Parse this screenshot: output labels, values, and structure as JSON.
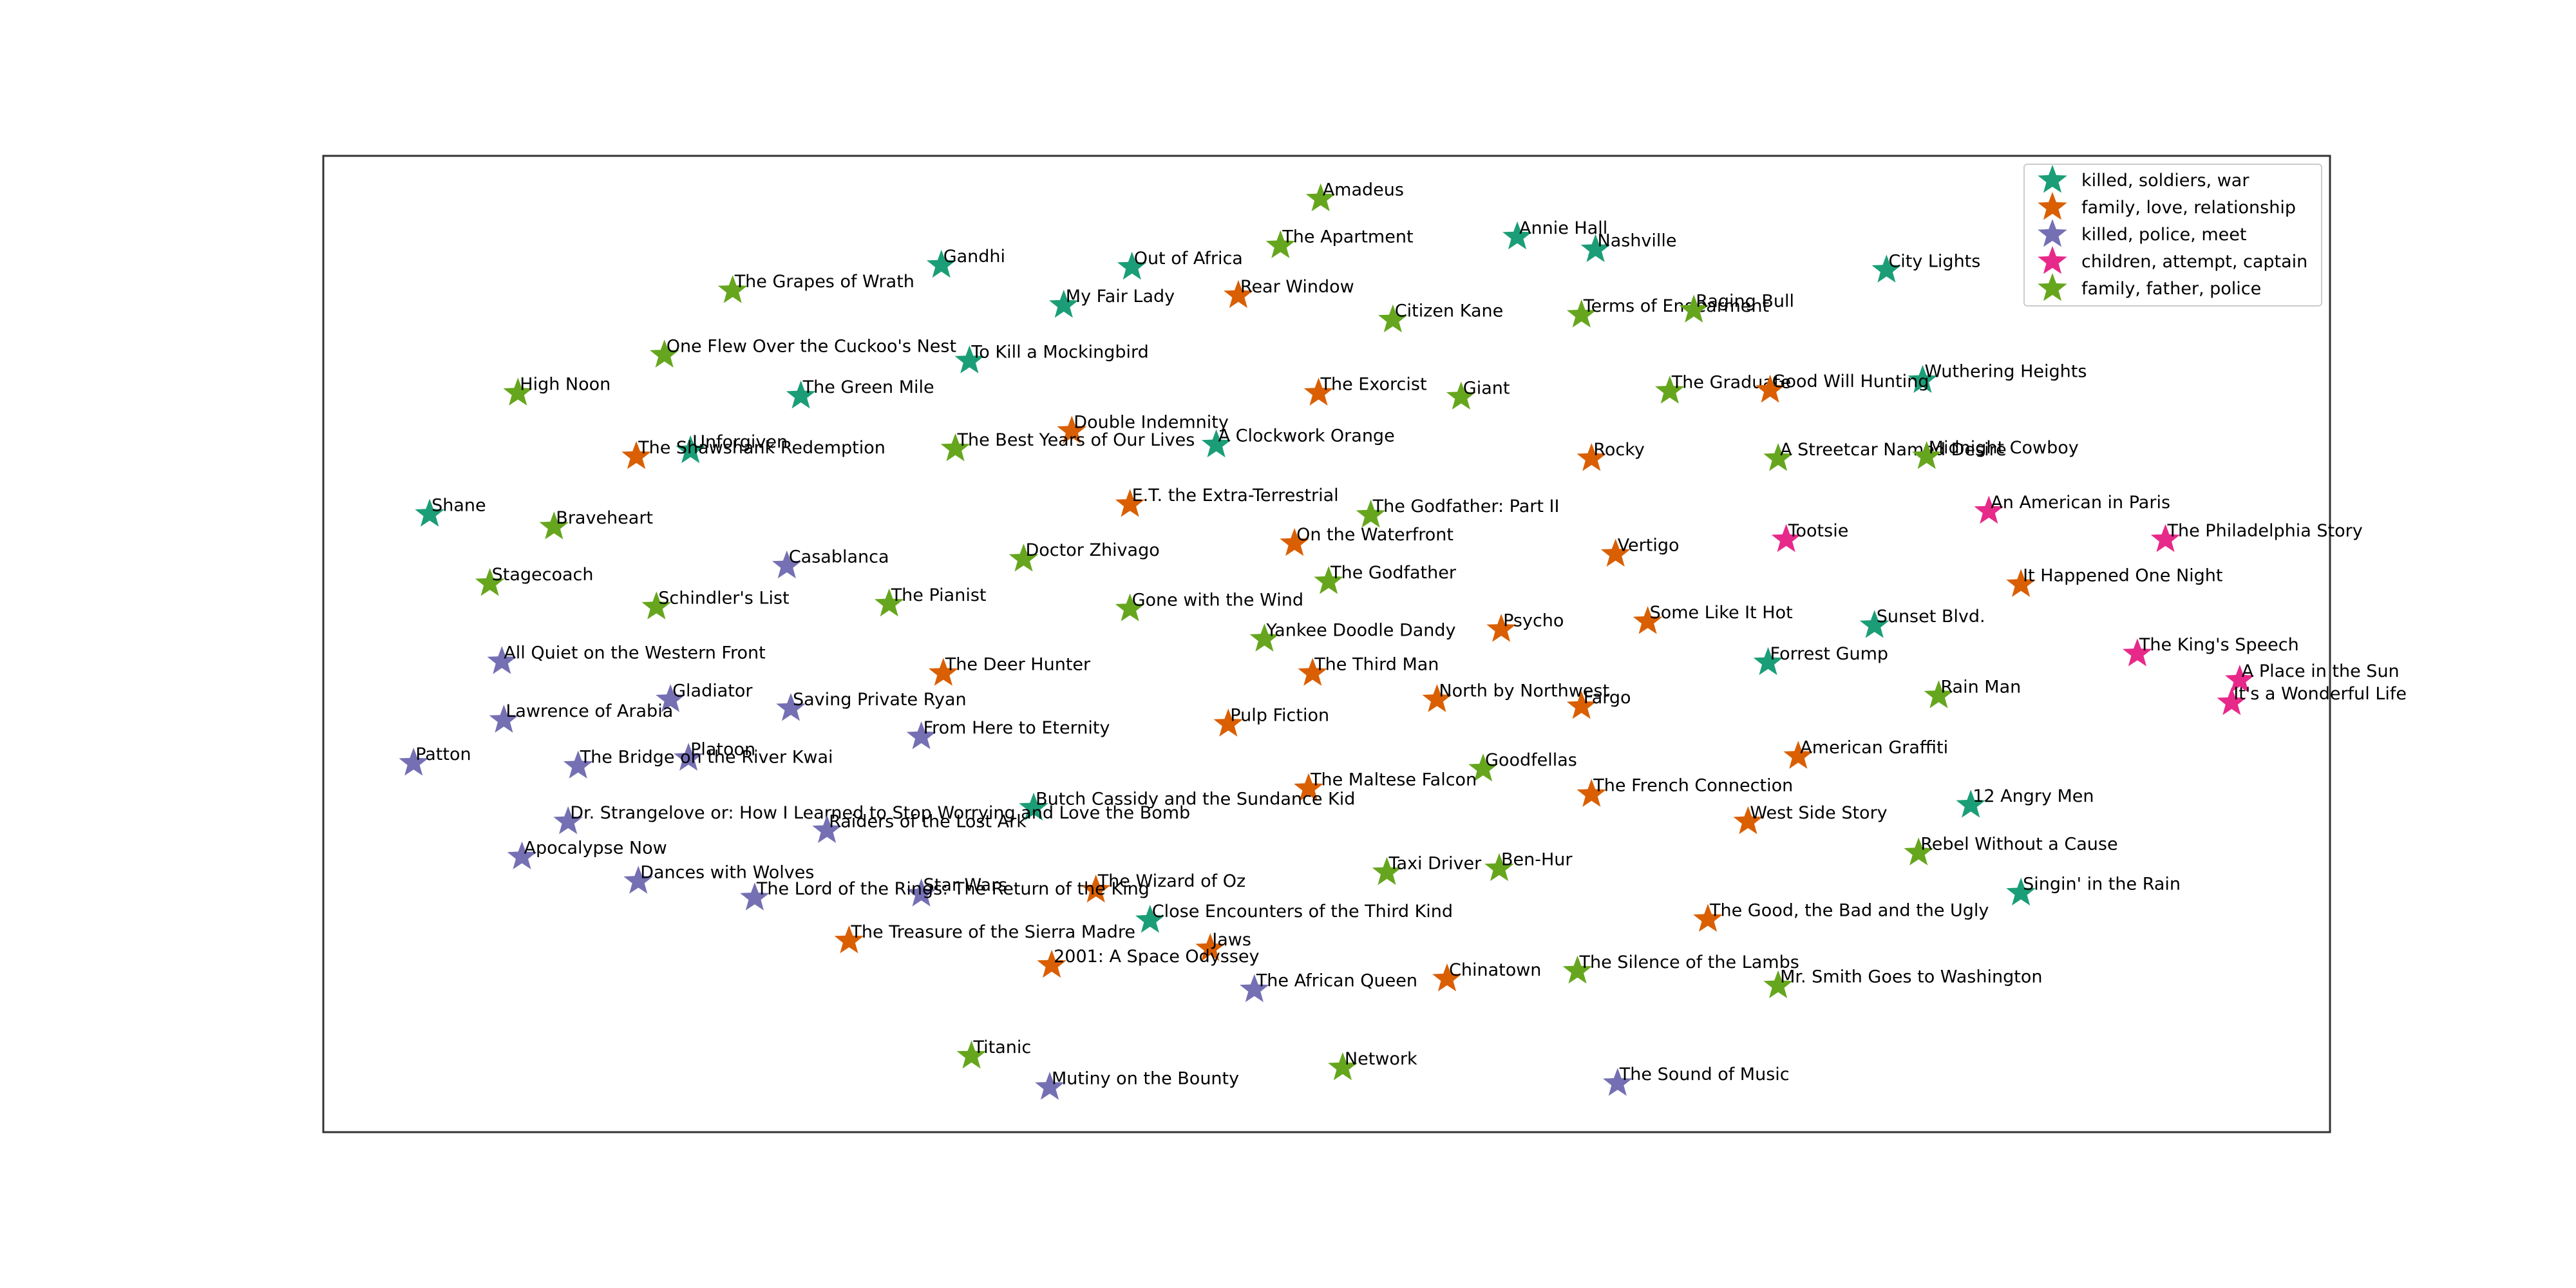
{
  "chart_data": {
    "type": "scatter",
    "title": "",
    "xlabel": "",
    "ylabel": "",
    "grid": false,
    "axis_ticks": false,
    "legend_placement": "top-right",
    "xlim": [
      0,
      1000
    ],
    "ylim": [
      0,
      1000
    ],
    "series": [
      {
        "name": "killed, soldiers, war",
        "color": "#1b9e77",
        "marker": "star"
      },
      {
        "name": "family, love, relationship",
        "color": "#d95f02",
        "marker": "star"
      },
      {
        "name": "killed, police, meet",
        "color": "#7570b3",
        "marker": "star"
      },
      {
        "name": "children, attempt, captain",
        "color": "#e7298a",
        "marker": "star"
      },
      {
        "name": "family, father, police",
        "color": "#66a61e",
        "marker": "star"
      }
    ],
    "points": [
      {
        "label": "Amadeus",
        "x": 497,
        "y": 956,
        "s": 4
      },
      {
        "label": "Annie Hall",
        "x": 595,
        "y": 917,
        "s": 0
      },
      {
        "label": "Nashville",
        "x": 634,
        "y": 904,
        "s": 0
      },
      {
        "label": "Gandhi",
        "x": 308,
        "y": 888,
        "s": 0
      },
      {
        "label": "Out of Africa",
        "x": 403,
        "y": 886,
        "s": 0
      },
      {
        "label": "The Apartment",
        "x": 477,
        "y": 908,
        "s": 4
      },
      {
        "label": "City Lights",
        "x": 779,
        "y": 883,
        "s": 0
      },
      {
        "label": "The Grapes of Wrath",
        "x": 204,
        "y": 862,
        "s": 4
      },
      {
        "label": "My Fair Lady",
        "x": 369,
        "y": 847,
        "s": 0
      },
      {
        "label": "Rear Window",
        "x": 456,
        "y": 857,
        "s": 1
      },
      {
        "label": "Citizen Kane",
        "x": 533,
        "y": 832,
        "s": 4
      },
      {
        "label": "Terms of Endearment",
        "x": 627,
        "y": 837,
        "s": 4
      },
      {
        "label": "Raging Bull",
        "x": 683,
        "y": 842,
        "s": 4
      },
      {
        "label": "One Flew Over the Cuckoo's Nest",
        "x": 170,
        "y": 796,
        "s": 4
      },
      {
        "label": "To Kill a Mockingbird",
        "x": 322,
        "y": 790,
        "s": 0
      },
      {
        "label": "Wuthering Heights",
        "x": 797,
        "y": 770,
        "s": 0
      },
      {
        "label": "High Noon",
        "x": 97,
        "y": 757,
        "s": 4
      },
      {
        "label": "The Green Mile",
        "x": 238,
        "y": 754,
        "s": 0
      },
      {
        "label": "The Exorcist",
        "x": 496,
        "y": 757,
        "s": 1
      },
      {
        "label": "Giant",
        "x": 567,
        "y": 753,
        "s": 4
      },
      {
        "label": "The Graduate",
        "x": 671,
        "y": 759,
        "s": 4
      },
      {
        "label": "Good Will Hunting",
        "x": 721,
        "y": 760,
        "s": 1
      },
      {
        "label": "Double Indemnity",
        "x": 373,
        "y": 718,
        "s": 1
      },
      {
        "label": "Unforgiven",
        "x": 183,
        "y": 698,
        "s": 0
      },
      {
        "label": "The Shawshank Redemption",
        "x": 156,
        "y": 692,
        "s": 1
      },
      {
        "label": "The Best Years of Our Lives",
        "x": 315,
        "y": 700,
        "s": 4
      },
      {
        "label": "A Clockwork Orange",
        "x": 445,
        "y": 704,
        "s": 0
      },
      {
        "label": "Rocky",
        "x": 632,
        "y": 690,
        "s": 1
      },
      {
        "label": "A Streetcar Named Desire",
        "x": 725,
        "y": 690,
        "s": 4
      },
      {
        "label": "Midnight Cowboy",
        "x": 799,
        "y": 692,
        "s": 4
      },
      {
        "label": "E.T. the Extra-Terrestrial",
        "x": 402,
        "y": 643,
        "s": 1
      },
      {
        "label": "The Godfather: Part II",
        "x": 522,
        "y": 632,
        "s": 4
      },
      {
        "label": "An American in Paris",
        "x": 830,
        "y": 636,
        "s": 3
      },
      {
        "label": "Shane",
        "x": 53,
        "y": 633,
        "s": 0
      },
      {
        "label": "Braveheart",
        "x": 115,
        "y": 620,
        "s": 4
      },
      {
        "label": "Tootsie",
        "x": 729,
        "y": 607,
        "s": 3
      },
      {
        "label": "The Philadelphia Story",
        "x": 918,
        "y": 607,
        "s": 3
      },
      {
        "label": "On the Waterfront",
        "x": 484,
        "y": 603,
        "s": 1
      },
      {
        "label": "Vertigo",
        "x": 644,
        "y": 592,
        "s": 1
      },
      {
        "label": "Casablanca",
        "x": 231,
        "y": 580,
        "s": 2
      },
      {
        "label": "Doctor Zhivago",
        "x": 349,
        "y": 587,
        "s": 4
      },
      {
        "label": "The Godfather",
        "x": 501,
        "y": 564,
        "s": 4
      },
      {
        "label": "Stagecoach",
        "x": 83,
        "y": 562,
        "s": 4
      },
      {
        "label": "It Happened One Night",
        "x": 846,
        "y": 561,
        "s": 1
      },
      {
        "label": "Schindler's List",
        "x": 166,
        "y": 538,
        "s": 4
      },
      {
        "label": "The Pianist",
        "x": 282,
        "y": 541,
        "s": 4
      },
      {
        "label": "Gone with the Wind",
        "x": 402,
        "y": 536,
        "s": 4
      },
      {
        "label": "Psycho",
        "x": 587,
        "y": 515,
        "s": 1
      },
      {
        "label": "Some Like It Hot",
        "x": 660,
        "y": 523,
        "s": 1
      },
      {
        "label": "Sunset Blvd.",
        "x": 773,
        "y": 519,
        "s": 0
      },
      {
        "label": "Yankee Doodle Dandy",
        "x": 469,
        "y": 505,
        "s": 4
      },
      {
        "label": "All Quiet on the Western Front",
        "x": 89,
        "y": 482,
        "s": 2
      },
      {
        "label": "The King's Speech",
        "x": 904,
        "y": 490,
        "s": 3
      },
      {
        "label": "Forrest Gump",
        "x": 720,
        "y": 481,
        "s": 0
      },
      {
        "label": "The Deer Hunter",
        "x": 309,
        "y": 470,
        "s": 1
      },
      {
        "label": "The Third Man",
        "x": 493,
        "y": 470,
        "s": 1
      },
      {
        "label": "A Place in the Sun",
        "x": 955,
        "y": 463,
        "s": 3
      },
      {
        "label": "Gladiator",
        "x": 173,
        "y": 443,
        "s": 2
      },
      {
        "label": "Saving Private Ryan",
        "x": 233,
        "y": 434,
        "s": 2
      },
      {
        "label": "Rain Man",
        "x": 805,
        "y": 447,
        "s": 4
      },
      {
        "label": "It's a Wonderful Life",
        "x": 951,
        "y": 440,
        "s": 3
      },
      {
        "label": "North by Northwest",
        "x": 555,
        "y": 443,
        "s": 1
      },
      {
        "label": "Fargo",
        "x": 627,
        "y": 436,
        "s": 1
      },
      {
        "label": "Lawrence of Arabia",
        "x": 90,
        "y": 422,
        "s": 2
      },
      {
        "label": "Pulp Fiction",
        "x": 451,
        "y": 418,
        "s": 1
      },
      {
        "label": "From Here to Eternity",
        "x": 298,
        "y": 405,
        "s": 2
      },
      {
        "label": "Platoon",
        "x": 182,
        "y": 383,
        "s": 2
      },
      {
        "label": "Patton",
        "x": 45,
        "y": 378,
        "s": 2
      },
      {
        "label": "The Bridge on the River Kwai",
        "x": 127,
        "y": 375,
        "s": 2
      },
      {
        "label": "American Graffiti",
        "x": 735,
        "y": 385,
        "s": 1
      },
      {
        "label": "Goodfellas",
        "x": 578,
        "y": 372,
        "s": 4
      },
      {
        "label": "The Maltese Falcon",
        "x": 491,
        "y": 352,
        "s": 1
      },
      {
        "label": "The French Connection",
        "x": 632,
        "y": 346,
        "s": 1
      },
      {
        "label": "Butch Cassidy and the Sundance Kid",
        "x": 354,
        "y": 332,
        "s": 0
      },
      {
        "label": "12 Angry Men",
        "x": 821,
        "y": 335,
        "s": 0
      },
      {
        "label": "Dr. Strangelove or: How I Learned to Stop Worrying and Love the Bomb",
        "x": 122,
        "y": 318,
        "s": 2
      },
      {
        "label": "Raiders of the Lost Ark",
        "x": 251,
        "y": 309,
        "s": 2
      },
      {
        "label": "West Side Story",
        "x": 710,
        "y": 318,
        "s": 1
      },
      {
        "label": "Apocalypse Now",
        "x": 99,
        "y": 282,
        "s": 2
      },
      {
        "label": "Rebel Without a Cause",
        "x": 795,
        "y": 286,
        "s": 4
      },
      {
        "label": "Taxi Driver",
        "x": 530,
        "y": 266,
        "s": 4
      },
      {
        "label": "Ben-Hur",
        "x": 586,
        "y": 270,
        "s": 4
      },
      {
        "label": "Dances with Wolves",
        "x": 157,
        "y": 257,
        "s": 2
      },
      {
        "label": "The Wizard of Oz",
        "x": 385,
        "y": 248,
        "s": 1
      },
      {
        "label": "Star Wars",
        "x": 298,
        "y": 244,
        "s": 2
      },
      {
        "label": "The Lord of the Rings: The Return of the King",
        "x": 215,
        "y": 240,
        "s": 2
      },
      {
        "label": "Singin' in the Rain",
        "x": 846,
        "y": 245,
        "s": 0
      },
      {
        "label": "Close Encounters of the Third Kind",
        "x": 412,
        "y": 217,
        "s": 0
      },
      {
        "label": "The Good, the Bad and the Ugly",
        "x": 690,
        "y": 218,
        "s": 1
      },
      {
        "label": "The Treasure of the Sierra Madre",
        "x": 262,
        "y": 196,
        "s": 1
      },
      {
        "label": "Jaws",
        "x": 442,
        "y": 188,
        "s": 1
      },
      {
        "label": "2001: A Space Odyssey",
        "x": 363,
        "y": 171,
        "s": 1
      },
      {
        "label": "The Silence of the Lambs",
        "x": 625,
        "y": 165,
        "s": 4
      },
      {
        "label": "Chinatown",
        "x": 560,
        "y": 157,
        "s": 1
      },
      {
        "label": "Mr. Smith Goes to Washington",
        "x": 725,
        "y": 150,
        "s": 4
      },
      {
        "label": "The African Queen",
        "x": 464,
        "y": 146,
        "s": 2
      },
      {
        "label": "Titanic",
        "x": 323,
        "y": 78,
        "s": 4
      },
      {
        "label": "Network",
        "x": 508,
        "y": 66,
        "s": 4
      },
      {
        "label": "The Sound of Music",
        "x": 645,
        "y": 50,
        "s": 2
      },
      {
        "label": "Mutiny on the Bounty",
        "x": 362,
        "y": 46,
        "s": 2
      }
    ]
  }
}
